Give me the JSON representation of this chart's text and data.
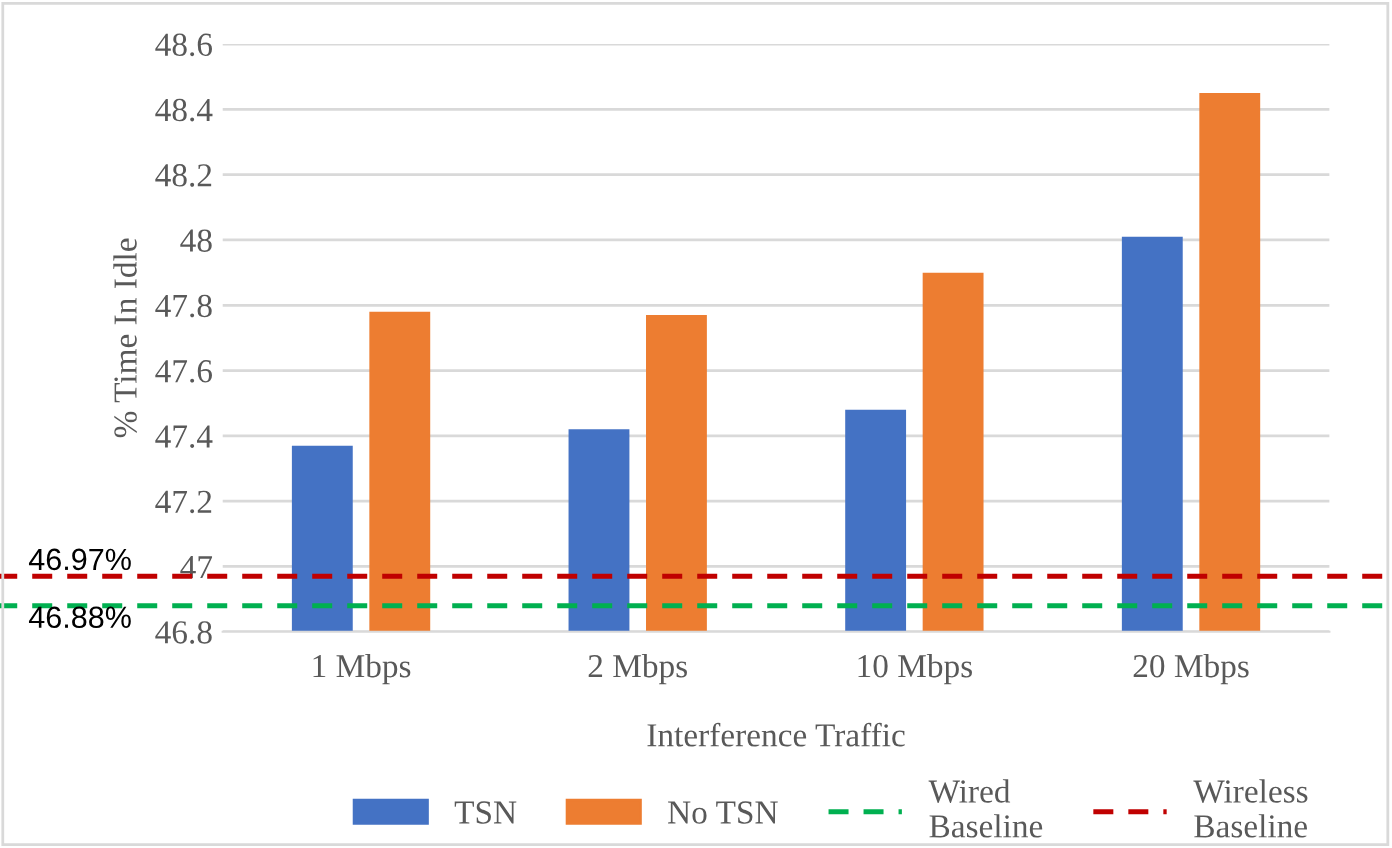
{
  "chart_data": {
    "type": "bar",
    "xlabel": "Interference Traffic",
    "ylabel": "% Time In Idle",
    "categories": [
      "1 Mbps",
      "2 Mbps",
      "10 Mbps",
      "20 Mbps"
    ],
    "series": [
      {
        "name": "TSN",
        "color": "#4472c4",
        "values": [
          47.37,
          47.42,
          47.48,
          48.01
        ]
      },
      {
        "name": "No TSN",
        "color": "#ed7d31",
        "values": [
          47.78,
          47.77,
          47.9,
          48.45
        ]
      }
    ],
    "ref_lines": [
      {
        "axis": "y",
        "value": 46.88,
        "label": "Wired\nBaseline",
        "color": "#00b050",
        "line_style": "dashed"
      },
      {
        "axis": "y",
        "value": 46.97,
        "label": "Wireless\nBaseline",
        "color": "#c00000",
        "line_style": "dashed"
      }
    ],
    "annotations": [
      {
        "text": "46.97%",
        "y": 46.97
      },
      {
        "text": "46.88%",
        "y": 46.88
      }
    ],
    "ylim": [
      46.8,
      48.6
    ],
    "yticks": [
      46.8,
      47,
      47.2,
      47.4,
      47.6,
      47.8,
      48,
      48.2,
      48.4,
      48.6
    ],
    "grid": "y",
    "legend": "bottom"
  }
}
